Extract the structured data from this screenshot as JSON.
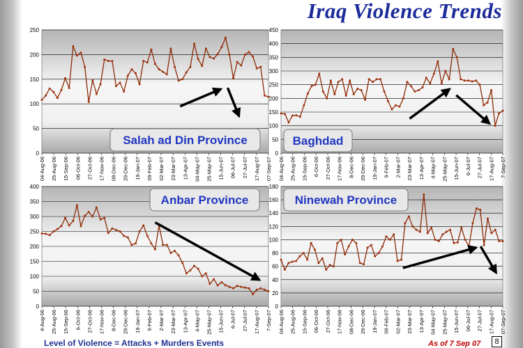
{
  "header": {
    "title": "Iraq Violence Trends"
  },
  "footer": {
    "legend_text": "Level of Violence = Attacks + Murders Events",
    "as_of": "As of  7 Sep 07",
    "page_number": "8"
  },
  "chart_data": [
    {
      "type": "line",
      "title": "Salah ad Din Province",
      "ylim": [
        0,
        250
      ],
      "yticks": [
        "0",
        "50",
        "100",
        "150",
        "200",
        "250"
      ],
      "xticks": [
        "04-Aug-06",
        "25-Aug-06",
        "15-Sep-06",
        "06-Oct-06",
        "27-Oct-06",
        "17-Nov-06",
        "08-Dec-06",
        "29-Dec-06",
        "19-Jan-07",
        "09-Feb-07",
        "02-Mar-07",
        "23-Mar-07",
        "13-Apr-07",
        "04-May-07",
        "25-May-07",
        "15-Jun-07",
        "06-Jul-07",
        "27-Jul-07",
        "17-Aug-07",
        "07-Sep-07"
      ],
      "values": [
        108,
        117,
        131,
        124,
        112,
        128,
        152,
        132,
        217,
        198,
        204,
        175,
        104,
        148,
        120,
        140,
        190,
        187,
        187,
        136,
        143,
        125,
        157,
        170,
        162,
        140,
        187,
        184,
        210,
        181,
        170,
        165,
        160,
        212,
        175,
        147,
        150,
        164,
        175,
        222,
        191,
        177,
        212,
        195,
        192,
        201,
        215,
        234,
        200,
        152,
        185,
        178,
        200,
        205,
        196,
        172,
        175,
        117,
        114
      ],
      "arrows": [
        {
          "from": [
            0.61,
            0.62
          ],
          "to": [
            0.79,
            0.48
          ]
        },
        {
          "from": [
            0.82,
            0.47
          ],
          "to": [
            0.87,
            0.7
          ]
        }
      ]
    },
    {
      "type": "line",
      "title": "Baghdad",
      "ylim": [
        0,
        450
      ],
      "yticks": [
        "0",
        "50",
        "100",
        "150",
        "200",
        "250",
        "300",
        "350",
        "400",
        "450"
      ],
      "xticks": [
        "04-Aug-06",
        "25-Aug-06",
        "15-Sep-06",
        "6-Oct-06",
        "27-Oct-06",
        "17-Nov-06",
        "8-Dec-06",
        "29-Dec-06",
        "19-Jan-07",
        "9-Feb-07",
        "2-Mar-07",
        "23-Mar-07",
        "13-Apr-07",
        "4-May-07",
        "25-May-07",
        "15-Jun-07",
        "6-Jul-07",
        "27-Jul-07",
        "17-Aug-07",
        "7-Sep-07"
      ],
      "values": [
        145,
        143,
        112,
        137,
        138,
        133,
        175,
        218,
        245,
        250,
        290,
        225,
        200,
        265,
        215,
        260,
        270,
        210,
        265,
        215,
        235,
        230,
        195,
        270,
        260,
        270,
        270,
        225,
        190,
        160,
        175,
        170,
        200,
        260,
        245,
        225,
        230,
        240,
        275,
        255,
        290,
        335,
        255,
        300,
        270,
        380,
        350,
        270,
        265,
        265,
        262,
        265,
        250,
        175,
        185,
        230,
        100,
        145,
        155
      ],
      "arrows": [
        {
          "from": [
            0.58,
            0.72
          ],
          "to": [
            0.76,
            0.48
          ]
        },
        {
          "from": [
            0.79,
            0.53
          ],
          "to": [
            0.94,
            0.76
          ]
        }
      ]
    },
    {
      "type": "line",
      "title": "Anbar Province",
      "ylim": [
        0,
        400
      ],
      "yticks": [
        "0",
        "50",
        "100",
        "150",
        "200",
        "250",
        "300",
        "350",
        "400"
      ],
      "xticks": [
        "4-Aug-06",
        "25-Aug-06",
        "15-Sep-06",
        "6-Oct-06",
        "27-Oct-06",
        "17-Nov-06",
        "8-Dec-06",
        "29-Dec-06",
        "19-Jan-07",
        "9-Feb-07",
        "2-Mar-07",
        "23-Mar-07",
        "13-Apr-07",
        "4-May-07",
        "25-May-07",
        "15-Jun-07",
        "6-Jul-07",
        "27-Jul-07",
        "17-Aug-07",
        "7-Sep-07"
      ],
      "values": [
        243,
        242,
        238,
        250,
        258,
        268,
        295,
        270,
        285,
        338,
        268,
        302,
        315,
        300,
        330,
        290,
        295,
        245,
        260,
        255,
        250,
        235,
        230,
        205,
        210,
        250,
        270,
        235,
        210,
        190,
        270,
        205,
        205,
        178,
        185,
        170,
        145,
        110,
        120,
        135,
        125,
        100,
        110,
        75,
        90,
        70,
        80,
        70,
        65,
        60,
        68,
        65,
        62,
        60,
        40,
        55,
        60,
        55,
        50
      ],
      "arrows": [
        {
          "from": [
            0.5,
            0.3
          ],
          "to": [
            0.96,
            0.78
          ]
        }
      ]
    },
    {
      "type": "line",
      "title": "Ninewah Province",
      "ylim": [
        0,
        180
      ],
      "yticks": [
        "0",
        "20",
        "40",
        "60",
        "80",
        "100",
        "120",
        "140",
        "160",
        "180"
      ],
      "xticks": [
        "04-Aug-06",
        "25-Aug-06",
        "15-Sep-06",
        "06-Oct-06",
        "27-Oct-06",
        "17-Nov-06",
        "08-Dec-06",
        "29-Dec-06",
        "19-Jan-07",
        "09-Feb-07",
        "02-Mar-07",
        "23-Mar-07",
        "13-Apr-07",
        "04-May-07",
        "25-May-07",
        "15-Jun-07",
        "06-Jul-07",
        "27-Jul-07",
        "17-Aug-07",
        "07-Sep-07"
      ],
      "values": [
        70,
        55,
        65,
        67,
        68,
        75,
        80,
        70,
        95,
        85,
        65,
        72,
        55,
        62,
        60,
        95,
        100,
        78,
        90,
        100,
        95,
        65,
        63,
        88,
        92,
        75,
        80,
        90,
        105,
        100,
        108,
        68,
        70,
        125,
        135,
        120,
        115,
        112,
        168,
        110,
        118,
        100,
        98,
        108,
        112,
        115,
        95,
        96,
        118,
        100,
        90,
        125,
        147,
        145,
        92,
        132,
        110,
        115,
        98,
        98
      ],
      "arrows": [
        {
          "from": [
            0.55,
            0.68
          ],
          "to": [
            0.88,
            0.51
          ]
        },
        {
          "from": [
            0.9,
            0.5
          ],
          "to": [
            0.97,
            0.72
          ]
        }
      ]
    }
  ]
}
